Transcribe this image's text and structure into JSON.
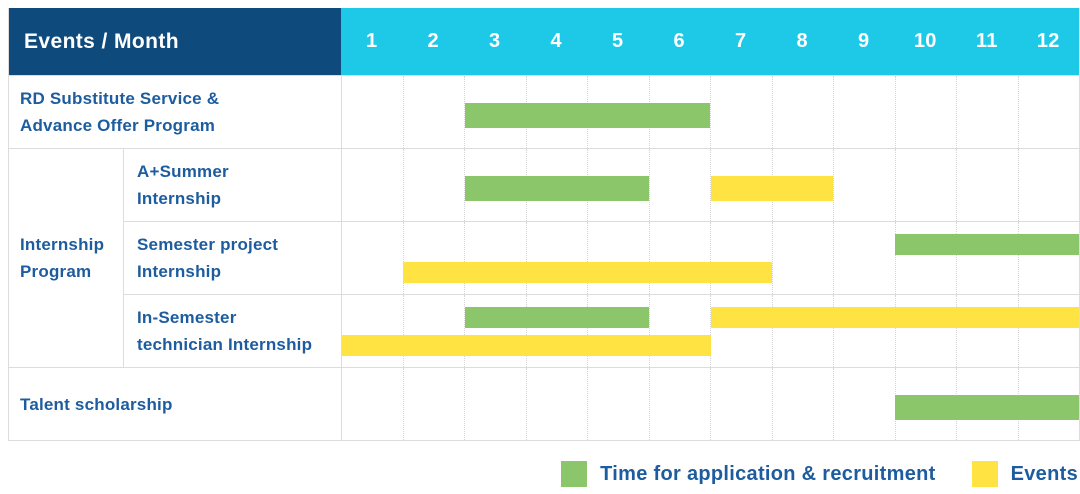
{
  "header": {
    "label": "Events / Month",
    "months": [
      "1",
      "2",
      "3",
      "4",
      "5",
      "6",
      "7",
      "8",
      "9",
      "10",
      "11",
      "12"
    ]
  },
  "colors": {
    "navy": "#0F4A7C",
    "cyan": "#1EC9E8",
    "green": "#8BC66A",
    "yellow": "#FFE342",
    "label_blue": "#1D5C9E"
  },
  "legend": {
    "items": [
      {
        "series": "application",
        "color": "#8BC66A",
        "label": "Time for application & recruitment"
      },
      {
        "series": "events",
        "color": "#FFE342",
        "label": "Events"
      }
    ]
  },
  "chart_data": {
    "type": "gantt",
    "unit": "month",
    "x_range": [
      1,
      12
    ],
    "series_colors": {
      "application": "#8BC66A",
      "events": "#FFE342"
    },
    "series_names": {
      "application": "Time for application & recruitment",
      "events": "Events"
    },
    "group_label_lines": [
      "Internship",
      "Program"
    ],
    "rows": [
      {
        "group": null,
        "label_lines": [
          "RD Substitute Service &",
          "Advance Offer Program"
        ],
        "bars": [
          {
            "series": "application",
            "start_month": 3,
            "end_month": 6,
            "lane": "center"
          }
        ]
      },
      {
        "group": "Internship Program",
        "label_lines": [
          "A+Summer",
          "Internship"
        ],
        "bars": [
          {
            "series": "application",
            "start_month": 3,
            "end_month": 5,
            "lane": "center"
          },
          {
            "series": "events",
            "start_month": 7,
            "end_month": 8,
            "lane": "center"
          }
        ]
      },
      {
        "group": "Internship Program",
        "label_lines": [
          "Semester project",
          "Internship"
        ],
        "bars": [
          {
            "series": "application",
            "start_month": 10,
            "end_month": 12,
            "lane": "top"
          },
          {
            "series": "events",
            "start_month": 2,
            "end_month": 7,
            "lane": "bottom"
          }
        ]
      },
      {
        "group": "Internship Program",
        "label_lines": [
          "In-Semester",
          "technician Internship"
        ],
        "bars": [
          {
            "series": "application",
            "start_month": 3,
            "end_month": 5,
            "lane": "top"
          },
          {
            "series": "events",
            "start_month": 7,
            "end_month": 12,
            "lane": "top"
          },
          {
            "series": "events",
            "start_month": 1,
            "end_month": 6,
            "lane": "bottom"
          }
        ]
      },
      {
        "group": null,
        "label_lines": [
          "Talent scholarship"
        ],
        "bars": [
          {
            "series": "application",
            "start_month": 10,
            "end_month": 12,
            "lane": "center"
          }
        ]
      }
    ]
  }
}
